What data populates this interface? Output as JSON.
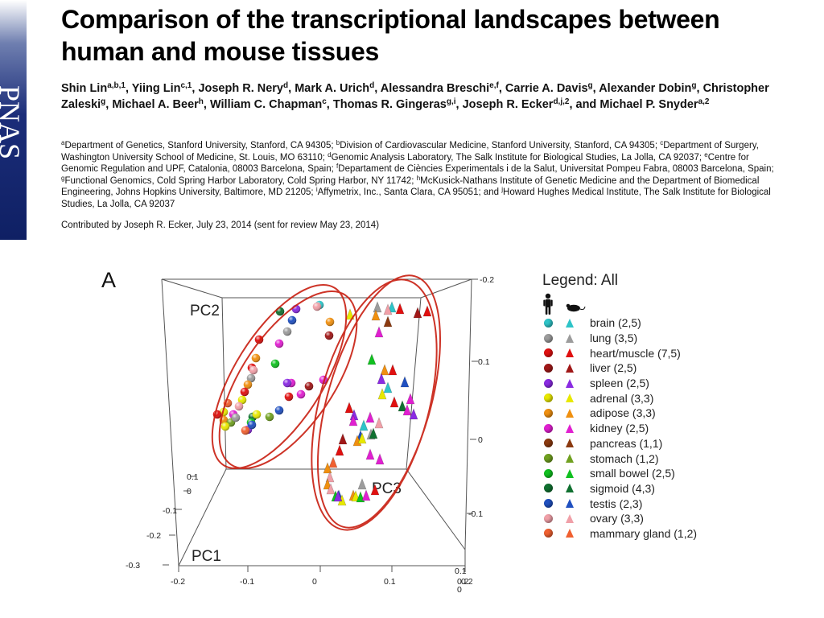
{
  "journal_logo": "PNAS",
  "title": "Comparison of the transcriptional landscapes between human and mouse tissues",
  "authors": [
    {
      "name": "Shin Lin",
      "sup": "a,b,1",
      "sep": ", "
    },
    {
      "name": "Yiing Lin",
      "sup": "c,1",
      "sep": ", "
    },
    {
      "name": "Joseph R. Nery",
      "sup": "d",
      "sep": ", "
    },
    {
      "name": "Mark A. Urich",
      "sup": "d",
      "sep": ", "
    },
    {
      "name": "Alessandra Breschi",
      "sup": "e,f",
      "sep": ", "
    },
    {
      "name": "Carrie A. Davis",
      "sup": "g",
      "sep": ", "
    },
    {
      "name": "Alexander Dobin",
      "sup": "g",
      "sep": ", "
    },
    {
      "name": "Christopher Zaleski",
      "sup": "g",
      "sep": ", "
    },
    {
      "name": "Michael A. Beer",
      "sup": "h",
      "sep": ", "
    },
    {
      "name": "William C. Chapman",
      "sup": "c",
      "sep": ", "
    },
    {
      "name": "Thomas R. Gingeras",
      "sup": "g,i",
      "sep": ", "
    },
    {
      "name": "Joseph R. Ecker",
      "sup": "d,j,2",
      "sep": ", "
    },
    {
      "name": "and Michael P. Snyder",
      "sup": "a,2",
      "sep": ""
    }
  ],
  "affiliations": [
    {
      "sup": "a",
      "text": "Department of Genetics, Stanford University, Stanford, CA 94305; "
    },
    {
      "sup": "b",
      "text": "Division of Cardiovascular Medicine, Stanford University, Stanford, CA 94305; "
    },
    {
      "sup": "c",
      "text": "Department of Surgery, Washington University School of Medicine, St. Louis, MO 63110; "
    },
    {
      "sup": "d",
      "text": "Genomic Analysis Laboratory, The Salk Institute for Biological Studies, La Jolla, CA 92037; "
    },
    {
      "sup": "e",
      "text": "Centre for Genomic Regulation and UPF, Catalonia, 08003 Barcelona, Spain; "
    },
    {
      "sup": "f",
      "text": "Departament de Ciències Experimentals i de la Salut, Universitat Pompeu Fabra, 08003 Barcelona, Spain; "
    },
    {
      "sup": "g",
      "text": "Functional Genomics, Cold Spring Harbor Laboratory, Cold Spring Harbor, NY 11742; "
    },
    {
      "sup": "h",
      "text": "McKusick-Nathans Institute of Genetic Medicine and the Department of Biomedical Engineering, Johns Hopkins University, Baltimore, MD 21205; "
    },
    {
      "sup": "i",
      "text": "Affymetrix, Inc., Santa Clara, CA 95051; and "
    },
    {
      "sup": "j",
      "text": "Howard Hughes Medical Institute, The Salk Institute for Biological Studies, La Jolla, CA 92037"
    }
  ],
  "contributed": "Contributed by Joseph R. Ecker, July 23, 2014 (sent for review May 23, 2014)",
  "figure": {
    "panel_label": "A",
    "pc_labels": {
      "pc1": "PC1",
      "pc2": "PC2",
      "pc3": "PC3"
    },
    "pc2_ticks": [
      "-0.2",
      "0.1",
      "0"
    ],
    "pc3_ticks": [
      "-0.1",
      "0.1",
      "0.2",
      "0"
    ],
    "pc1_ticks": [
      "-0.3",
      "-0.2",
      "-0.1",
      "0",
      "0.1"
    ],
    "pc3_bottom_ticks": [
      "-0.2",
      "-0.1",
      "0",
      "0.1",
      "0.2"
    ]
  },
  "legend": {
    "title": "Legend: All",
    "items": [
      {
        "label": "brain (2,5)",
        "color": "#2ec4c8"
      },
      {
        "label": "lung (3,5)",
        "color": "#9c9c9c"
      },
      {
        "label": "heart/muscle (7,5)",
        "color": "#e01010"
      },
      {
        "label": "liver (2,5)",
        "color": "#a01818"
      },
      {
        "label": "spleen (2,5)",
        "color": "#8a2be2"
      },
      {
        "label": "adrenal (3,3)",
        "color": "#e8e800"
      },
      {
        "label": "adipose (3,3)",
        "color": "#f09010"
      },
      {
        "label": "kidney (2,5)",
        "color": "#e020d0"
      },
      {
        "label": "pancreas (1,1)",
        "color": "#8b3a10"
      },
      {
        "label": "stomach (1,2)",
        "color": "#70a020"
      },
      {
        "label": "small bowel (2,5)",
        "color": "#10c020"
      },
      {
        "label": "sigmoid (4,3)",
        "color": "#107030"
      },
      {
        "label": "testis (2,3)",
        "color": "#2050c0"
      },
      {
        "label": "ovary (3,3)",
        "color": "#f0a0a8"
      },
      {
        "label": "mammary gland (1,2)",
        "color": "#f06030"
      }
    ]
  }
}
